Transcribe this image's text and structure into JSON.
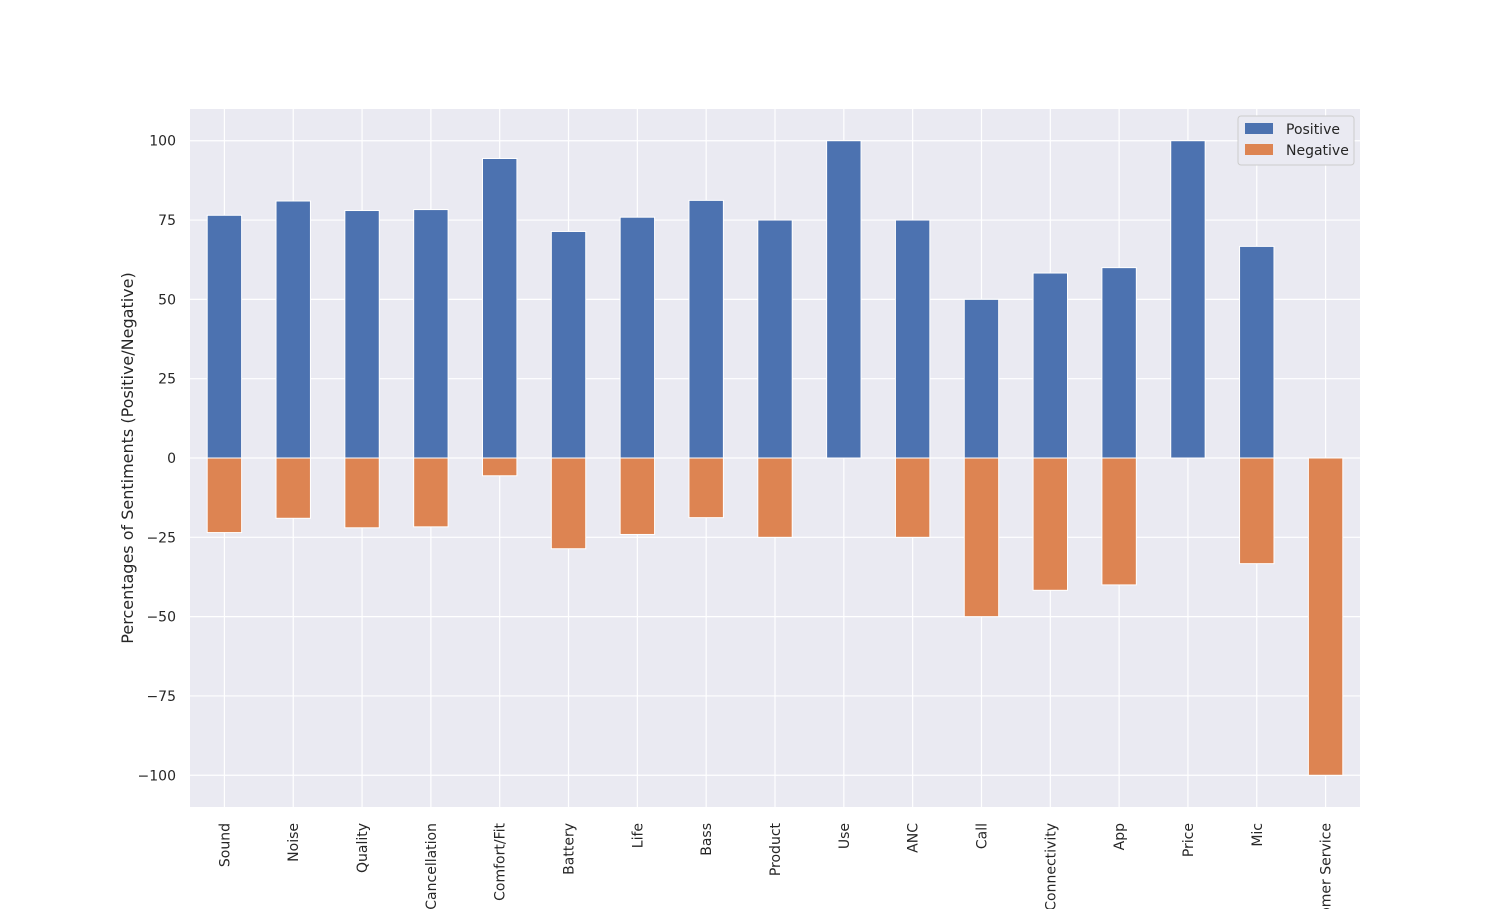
{
  "chart_data": {
    "type": "bar",
    "title": "",
    "xlabel": "",
    "ylabel": "Percentages of Sentiments (Positive/Negative)",
    "ylim": [
      -110,
      110
    ],
    "yticks": [
      -100,
      -75,
      -50,
      -25,
      0,
      25,
      50,
      75,
      100
    ],
    "ytick_labels": [
      "−100",
      "−75",
      "−50",
      "−25",
      "0",
      "25",
      "50",
      "75",
      "100"
    ],
    "grid": true,
    "legend_position": "top-right",
    "categories": [
      "Sound",
      "Noise",
      "Quality",
      "Cancellation",
      "Comfort/Fit",
      "Battery",
      "Life",
      "Bass",
      "Product",
      "Use",
      "ANC",
      "Call",
      "Connectivity",
      "App",
      "Price",
      "Mic",
      "Customer Service"
    ],
    "series": [
      {
        "name": "Positive",
        "color": "#4c72b0",
        "values": [
          76.5,
          81,
          78,
          78.3,
          94.4,
          71.4,
          75.9,
          81.2,
          75,
          100,
          75,
          50,
          58.3,
          60,
          100,
          66.7,
          0
        ]
      },
      {
        "name": "Negative",
        "color": "#dd8452",
        "values": [
          -23.5,
          -19,
          -22,
          -21.7,
          -5.6,
          -28.6,
          -24.1,
          -18.8,
          -25,
          0,
          -25,
          -50,
          -41.7,
          -40,
          0,
          -33.3,
          -100
        ]
      }
    ]
  }
}
